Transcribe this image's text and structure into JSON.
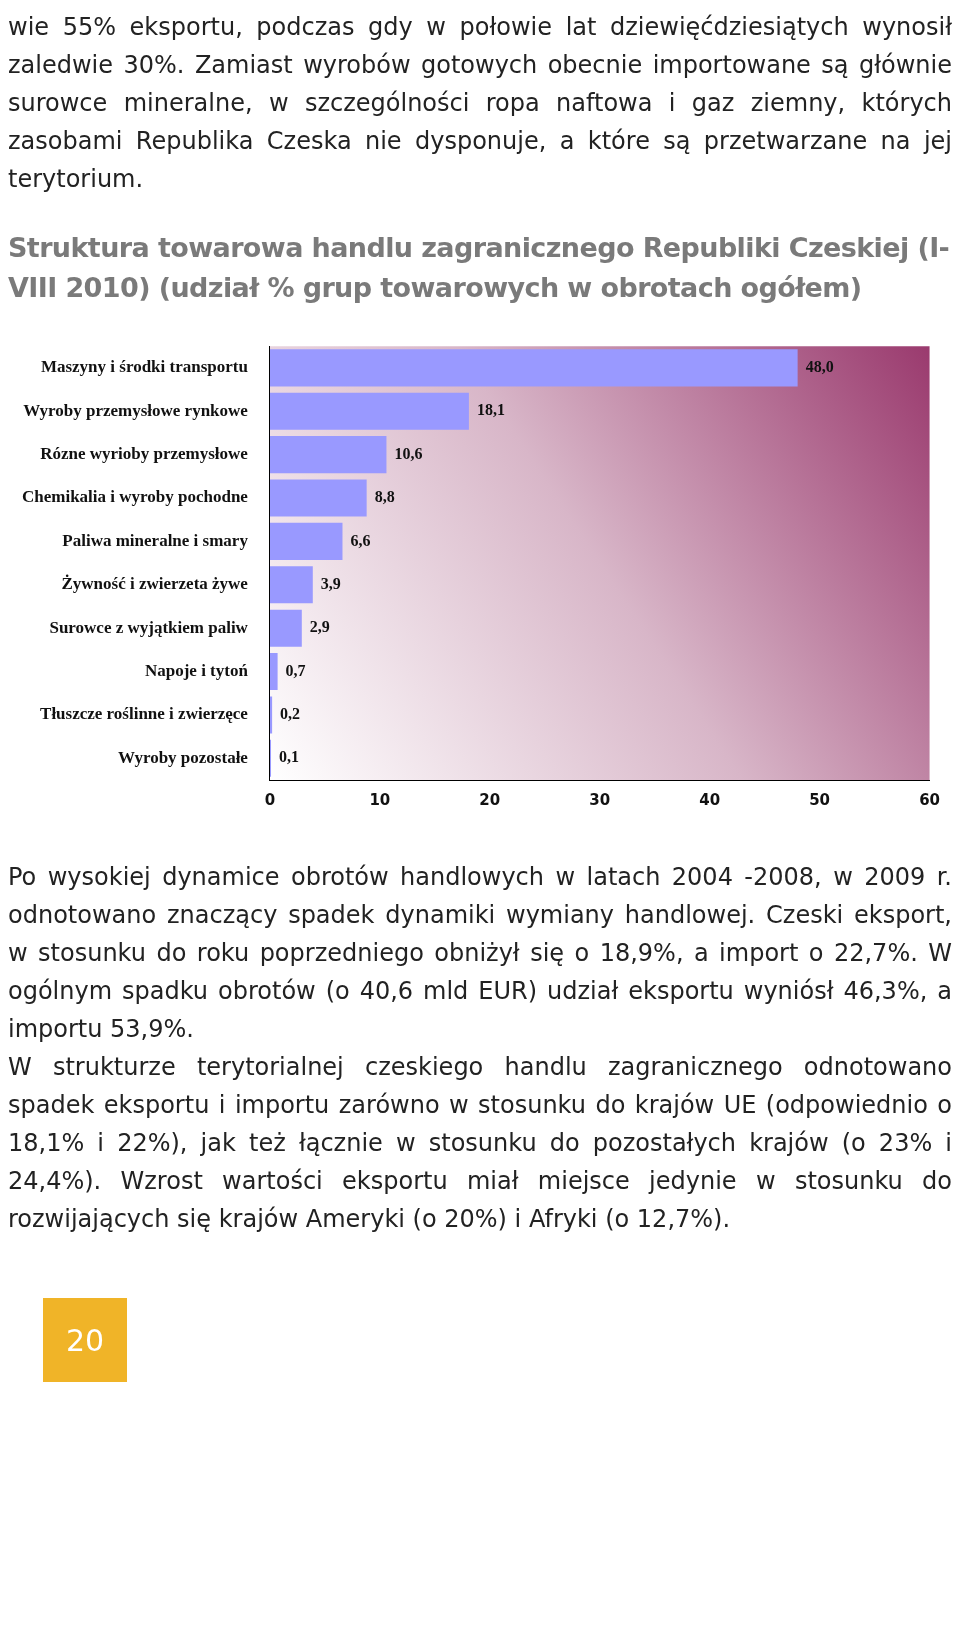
{
  "chart_data": {
    "type": "bar",
    "orientation": "horizontal",
    "title": "Struktura towarowa handlu zagranicznego Republiki Czeskiej (I-VIII 2010) (udział % grup towarowych w obrotach ogółem)",
    "categories": [
      "Maszyny i środki transportu",
      "Wyroby przemysłowe rynkowe",
      "Rózne wyrioby przemysłowe",
      "Chemikalia i wyroby pochodne",
      "Paliwa mineralne i smary",
      "Żywność i zwierzeta żywe",
      "Surowce z wyjątkiem paliw",
      "Napoje i tytoń",
      "Tłuszcze roślinne i zwierzęce",
      "Wyroby pozostałe"
    ],
    "values": [
      48.0,
      18.1,
      10.6,
      8.8,
      6.6,
      3.9,
      2.9,
      0.7,
      0.2,
      0.1
    ],
    "value_labels": [
      "48,0",
      "18,1",
      "10,6",
      "8,8",
      "6,6",
      "3,9",
      "2,9",
      "0,7",
      "0,2",
      "0,1"
    ],
    "color": "#9999ff",
    "xlim": [
      0,
      60
    ],
    "xticks": [
      0,
      10,
      20,
      30,
      40,
      50,
      60
    ],
    "grid": false,
    "legend": false,
    "annotations": [
      "wie 55% eksportu, podczas gdy w połowie lat dziewięćdziesiątych wynosił zaledwie 30%. Zamiast wyrobów gotowych obecnie importowane są głównie surowce mineralne, w szczególności ropa naftowa i gaz ziemny, których zasobami Republika Czeska nie dysponuje, a które są przetwarzane na jej terytorium.",
      "Po wysokiej dynamice obrotów handlowych w latach 2004 -2008, w 2009 r. odnotowano znaczący spadek dynamiki wymiany handlowej. Czeski eksport, w stosunku do roku poprzedniego obniżył się o 18,9%, a import o 22,7%. W ogólnym spadku obrotów (o 40,6 mld EUR) udział eksportu wyniósł 46,3%, a importu 53,9%.",
      "W strukturze terytorialnej czeskiego handlu zagranicznego odnotowano spadek eksportu i importu zarówno w stosunku do krajów UE (odpowiednio o 18,1% i 22%), jak też łącznie w stosunku do pozostałych krajów (o 23% i 24,4%). Wzrost wartości eksportu miał miejsce jedynie w stosunku do rozwijających się krajów Ameryki (o 20%) i Afryki (o 12,7%).",
      "20"
    ]
  }
}
